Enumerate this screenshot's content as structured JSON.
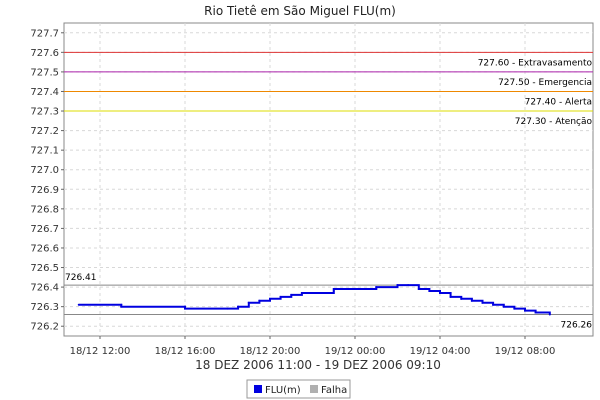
{
  "chart_data": {
    "type": "line",
    "title": "Rio Tietê em São Miguel FLU(m)",
    "xlabel": "18 DEZ 2006 11:00 - 19 DEZ 2006 09:10",
    "ylabel": "",
    "ylim": [
      726.15,
      727.75
    ],
    "y_ticks": [
      "727.7",
      "727.6",
      "727.5",
      "727.4",
      "727.3",
      "727.2",
      "727.1",
      "727.0",
      "726.9",
      "726.8",
      "726.7",
      "726.6",
      "726.5",
      "726.4",
      "726.3",
      "726.2"
    ],
    "x_ticks": [
      "18/12 12:00",
      "18/12 16:00",
      "18/12 20:00",
      "19/12 00:00",
      "19/12 04:00",
      "19/12 08:00"
    ],
    "grid": true,
    "legend_position": "bottom",
    "series": [
      {
        "name": "FLU(m)",
        "color": "#0000e0",
        "x": [
          "18/12 11:00",
          "18/12 13:00",
          "18/12 13:00",
          "18/12 16:00",
          "18/12 16:00",
          "18/12 18:00",
          "18/12 18:30",
          "18/12 19:00",
          "18/12 19:30",
          "18/12 20:00",
          "18/12 20:30",
          "18/12 21:00",
          "18/12 21:30",
          "18/12 22:00",
          "18/12 23:00",
          "18/12 23:00",
          "19/12 01:00",
          "19/12 01:00",
          "19/12 02:00",
          "19/12 02:30",
          "19/12 03:00",
          "19/12 03:30",
          "19/12 04:00",
          "19/12 04:30",
          "19/12 05:00",
          "19/12 05:30",
          "19/12 06:00",
          "19/12 06:30",
          "19/12 07:00",
          "19/12 07:30",
          "19/12 08:00",
          "19/12 08:30",
          "19/12 09:10"
        ],
        "y": [
          726.31,
          726.31,
          726.3,
          726.3,
          726.29,
          726.29,
          726.3,
          726.32,
          726.33,
          726.34,
          726.35,
          726.36,
          726.37,
          726.37,
          726.38,
          726.39,
          726.39,
          726.4,
          726.41,
          726.41,
          726.39,
          726.38,
          726.37,
          726.35,
          726.34,
          726.33,
          726.32,
          726.31,
          726.3,
          726.29,
          726.28,
          726.27,
          726.26
        ]
      },
      {
        "name": "Falha",
        "color": "#b0b0b0",
        "x": [],
        "y": []
      }
    ],
    "thresholds": [
      {
        "value": 727.6,
        "label": "727.60 - Extravasamento",
        "color": "#dd3333"
      },
      {
        "value": 727.5,
        "label": "727.50 - Emergencia",
        "color": "#aa22aa"
      },
      {
        "value": 727.4,
        "label": "727.40 - Alerta",
        "color": "#ee8800"
      },
      {
        "value": 727.3,
        "label": "727.30 - Atenção",
        "color": "#dddd00"
      }
    ],
    "max_marker": {
      "value": 726.41,
      "label": "726.41",
      "color": "#888888"
    },
    "min_marker": {
      "value": 726.26,
      "label": "726.26",
      "color": "#888888"
    }
  }
}
